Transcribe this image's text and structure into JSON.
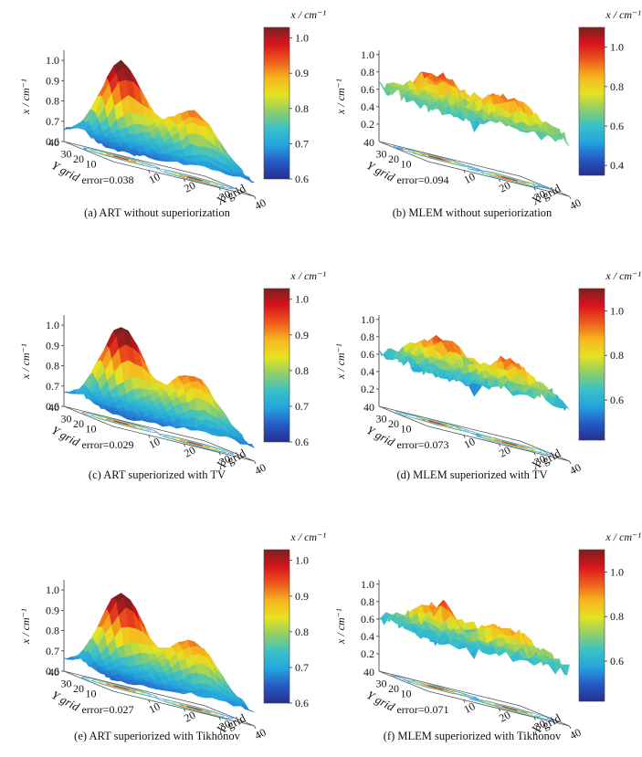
{
  "colors": {
    "colormap": [
      "#26318c",
      "#2659c7",
      "#25a3dd",
      "#3ac1c9",
      "#8fce6a",
      "#e6e320",
      "#f7b51f",
      "#ee5a1c",
      "#d8141c",
      "#7a2020"
    ],
    "background": "#ffffff"
  },
  "chart_data": [
    {
      "type": "surface3d",
      "caption": "(a)  ART  without  superiorization",
      "zlabel": "x / cm⁻¹",
      "colorbar_label": "x / cm⁻¹",
      "xlabel": "X grid",
      "ylabel": "Y grid",
      "x_ticks": [
        "10",
        "20",
        "30",
        "40"
      ],
      "y_ticks": [
        "10",
        "20",
        "30",
        "40"
      ],
      "z_ticks": [
        "0.6",
        "0.7",
        "0.8",
        "0.9",
        "1.0"
      ],
      "colorbar_ticks": [
        "0.6",
        "0.7",
        "0.8",
        "0.9",
        "1.0"
      ],
      "colorbar_range": [
        0.6,
        1.03
      ],
      "z_range": [
        0.6,
        1.05
      ],
      "error_text": "error=0.038",
      "error": 0.038,
      "grid": false
    },
    {
      "type": "surface3d",
      "caption": "(b)  MLEM  without  superiorization",
      "zlabel": "x / cm⁻¹",
      "colorbar_label": "x / cm⁻¹",
      "xlabel": "X grid",
      "ylabel": "Y grid",
      "x_ticks": [
        "10",
        "20",
        "30",
        "40"
      ],
      "y_ticks": [
        "10",
        "20",
        "30",
        "40"
      ],
      "z_ticks": [
        "0.2",
        "0.4",
        "0.6",
        "0.8",
        "1.0"
      ],
      "colorbar_ticks": [
        "0.4",
        "0.6",
        "0.8",
        "1.0"
      ],
      "colorbar_range": [
        0.35,
        1.1
      ],
      "z_range": [
        0.0,
        1.05
      ],
      "error_text": "error=0.094",
      "error": 0.094,
      "grid": false
    },
    {
      "type": "surface3d",
      "caption": "(c)  ART  superiorized  with  TV",
      "zlabel": "x / cm⁻¹",
      "colorbar_label": "x / cm⁻¹",
      "xlabel": "X grid",
      "ylabel": "Y grid",
      "x_ticks": [
        "10",
        "20",
        "30",
        "40"
      ],
      "y_ticks": [
        "10",
        "20",
        "30",
        "40"
      ],
      "z_ticks": [
        "0.6",
        "0.7",
        "0.8",
        "0.9",
        "1.0"
      ],
      "colorbar_ticks": [
        "0.6",
        "0.7",
        "0.8",
        "0.9",
        "1.0"
      ],
      "colorbar_range": [
        0.6,
        1.03
      ],
      "z_range": [
        0.6,
        1.05
      ],
      "error_text": "error=0.029",
      "error": 0.029,
      "grid": false
    },
    {
      "type": "surface3d",
      "caption": "(d)  MLEM  superiorized  with  TV",
      "zlabel": "x / cm⁻¹",
      "colorbar_label": "x / cm⁻¹",
      "xlabel": "X grid",
      "ylabel": "Y grid",
      "x_ticks": [
        "10",
        "20",
        "30",
        "40"
      ],
      "y_ticks": [
        "10",
        "20",
        "30",
        "40"
      ],
      "z_ticks": [
        "0.2",
        "0.4",
        "0.6",
        "0.8",
        "1.0"
      ],
      "colorbar_ticks": [
        "0.6",
        "0.8",
        "1.0"
      ],
      "colorbar_range": [
        0.42,
        1.1
      ],
      "z_range": [
        0.0,
        1.05
      ],
      "error_text": "error=0.073",
      "error": 0.073,
      "grid": false
    },
    {
      "type": "surface3d",
      "caption": "(e)  ART  superiorized  with  Tikhonov",
      "zlabel": "x / cm⁻¹",
      "colorbar_label": "x / cm⁻¹",
      "xlabel": "X grid",
      "ylabel": "Y grid",
      "x_ticks": [
        "10",
        "20",
        "30",
        "40"
      ],
      "y_ticks": [
        "10",
        "20",
        "30",
        "40"
      ],
      "z_ticks": [
        "0.6",
        "0.7",
        "0.8",
        "0.9",
        "1.0"
      ],
      "colorbar_ticks": [
        "0.6",
        "0.7",
        "0.8",
        "0.9",
        "1.0"
      ],
      "colorbar_range": [
        0.6,
        1.03
      ],
      "z_range": [
        0.6,
        1.05
      ],
      "error_text": "error=0.027",
      "error": 0.027,
      "grid": false
    },
    {
      "type": "surface3d",
      "caption": "(f)  MLEM  superiorized  with  Tikhonov",
      "zlabel": "x / cm⁻¹",
      "colorbar_label": "x / cm⁻¹",
      "xlabel": "X grid",
      "ylabel": "Y grid",
      "x_ticks": [
        "10",
        "20",
        "30",
        "40"
      ],
      "y_ticks": [
        "10",
        "20",
        "30",
        "40"
      ],
      "z_ticks": [
        "0.2",
        "0.4",
        "0.6",
        "0.8",
        "1.0"
      ],
      "colorbar_ticks": [
        "0.6",
        "0.8",
        "1.0"
      ],
      "colorbar_range": [
        0.42,
        1.1
      ],
      "z_range": [
        0.0,
        1.05
      ],
      "error_text": "error=0.071",
      "error": 0.071,
      "grid": false
    }
  ]
}
